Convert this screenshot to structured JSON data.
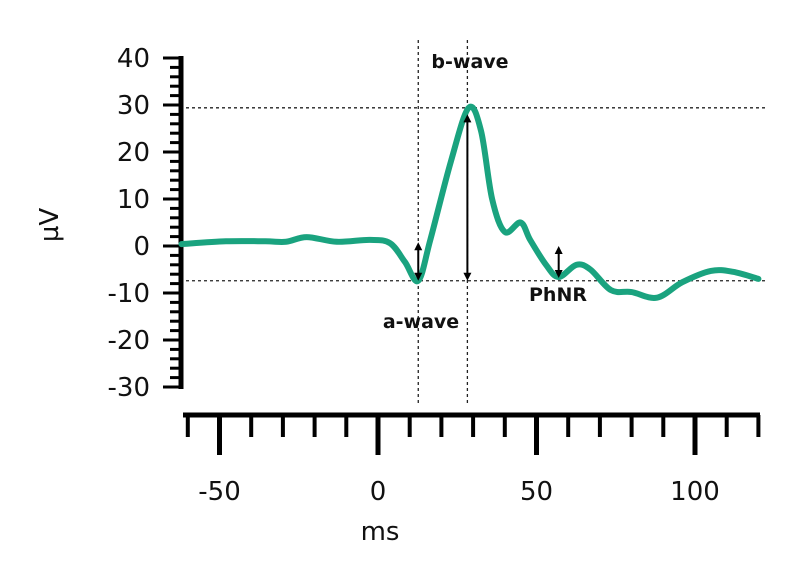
{
  "chart_data": {
    "type": "line",
    "title": "",
    "xlabel": "ms",
    "ylabel": "µV",
    "xlim": [
      -62,
      120
    ],
    "ylim": [
      -30,
      40
    ],
    "xticks": [
      -50,
      0,
      50,
      100
    ],
    "yticks": [
      40,
      30,
      20,
      10,
      0,
      -10,
      -20,
      -30
    ],
    "grid": false,
    "line_color": "#1aa37f",
    "series": [
      {
        "x": [
          -62,
          -48,
          -35.5,
          -29,
          -22.5,
          -13,
          -2.5,
          3.8,
          8.5,
          12.7,
          16.5,
          23,
          28.6,
          32.5,
          36,
          40,
          45,
          48,
          53,
          57,
          62.6,
          67,
          73.5,
          80,
          88,
          96,
          105,
          112,
          120
        ],
        "y": [
          0.4,
          1,
          1,
          0.9,
          1.9,
          0.9,
          1.3,
          0.6,
          -3.4,
          -7.4,
          1.3,
          18,
          29.4,
          24.5,
          10,
          3,
          5,
          1.3,
          -4,
          -6.6,
          -4,
          -5,
          -9.4,
          -9.8,
          -11,
          -7.7,
          -5.3,
          -5.5,
          -7
        ]
      }
    ],
    "reference_lines": {
      "horizontal": [
        29.4,
        -7.4
      ],
      "vertical": [
        12.7,
        28.2
      ]
    },
    "annotations": [
      {
        "label": "a-wave",
        "x": 12.7,
        "from": -7.4,
        "to": 0.8
      },
      {
        "label": "b-wave",
        "x": 28.2,
        "from": -7.4,
        "to": 28
      },
      {
        "label": "PhNR",
        "x": 57,
        "from": -6.8,
        "to": 0
      }
    ]
  }
}
